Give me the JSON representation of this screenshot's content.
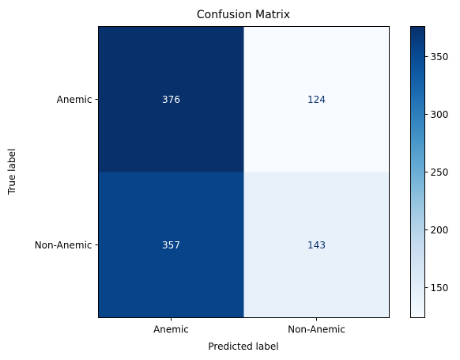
{
  "chart_data": {
    "type": "heatmap",
    "title": "Confusion Matrix",
    "xlabel": "Predicted label",
    "ylabel": "True label",
    "x_categories": [
      "Anemic",
      "Non-Anemic"
    ],
    "y_categories": [
      "Anemic",
      "Non-Anemic"
    ],
    "values": [
      [
        376,
        124
      ],
      [
        357,
        143
      ]
    ],
    "colormap": "Blues",
    "color_range": [
      124,
      376
    ],
    "colorbar_ticks": [
      "150",
      "200",
      "250",
      "300",
      "350"
    ],
    "colorbar_tick_values": [
      150,
      200,
      250,
      300,
      350
    ],
    "cell_text_colors": {
      "on_dark": "#ffffff",
      "on_light": "#08306b"
    }
  }
}
